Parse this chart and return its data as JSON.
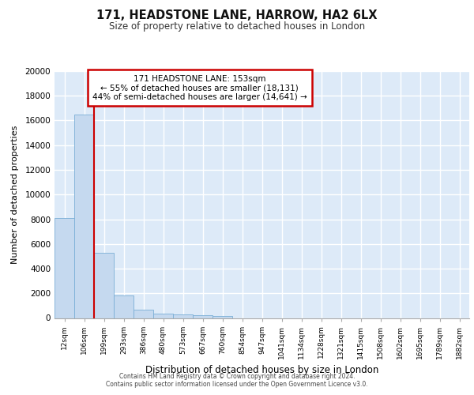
{
  "title": "171, HEADSTONE LANE, HARROW, HA2 6LX",
  "subtitle": "Size of property relative to detached houses in London",
  "xlabel": "Distribution of detached houses by size in London",
  "ylabel": "Number of detached properties",
  "bar_color": "#c5d9ef",
  "bar_edge_color": "#7aaed6",
  "background_color": "#ddeaf8",
  "grid_color": "#ffffff",
  "categories": [
    "12sqm",
    "106sqm",
    "199sqm",
    "293sqm",
    "386sqm",
    "480sqm",
    "573sqm",
    "667sqm",
    "760sqm",
    "854sqm",
    "947sqm",
    "1041sqm",
    "1134sqm",
    "1228sqm",
    "1321sqm",
    "1415sqm",
    "1508sqm",
    "1602sqm",
    "1695sqm",
    "1789sqm",
    "1882sqm"
  ],
  "values": [
    8100,
    16500,
    5300,
    1850,
    700,
    350,
    290,
    200,
    180,
    0,
    0,
    0,
    0,
    0,
    0,
    0,
    0,
    0,
    0,
    0,
    0
  ],
  "annotation_line1": "171 HEADSTONE LANE: 153sqm",
  "annotation_line2": "← 55% of detached houses are smaller (18,131)",
  "annotation_line3": "44% of semi-detached houses are larger (14,641) →",
  "annotation_box_facecolor": "#ffffff",
  "annotation_border_color": "#cc0000",
  "red_line_x": 1.5,
  "ylim_max": 20000,
  "yticks": [
    0,
    2000,
    4000,
    6000,
    8000,
    10000,
    12000,
    14000,
    16000,
    18000,
    20000
  ],
  "footer_line1": "Contains HM Land Registry data © Crown copyright and database right 2024.",
  "footer_line2": "Contains public sector information licensed under the Open Government Licence v3.0."
}
